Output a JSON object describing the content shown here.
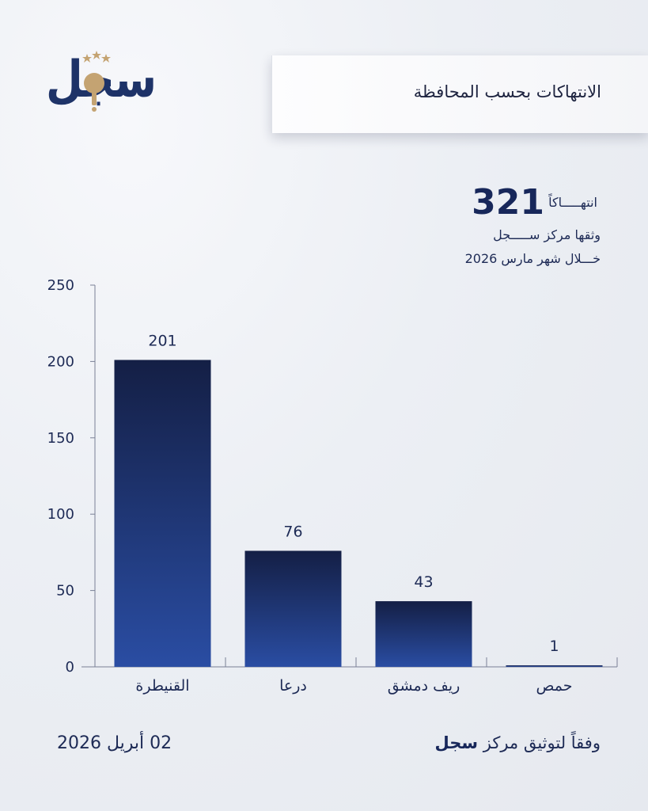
{
  "logo": {
    "text": "سجل"
  },
  "header": {
    "title": "الانتهاكات بحسب المحافظة"
  },
  "summary": {
    "total": "321",
    "total_word": "انتهـــــاكاً",
    "line2": "وثقها مركز ســـــجل",
    "line3": "خـــلال شهر مارس 2026"
  },
  "footer": {
    "date": "02 أبريل 2026",
    "credit_prefix": "وفقاً لتوثيق مركز",
    "credit_name": "سجل"
  },
  "colors": {
    "bar_top": "#141f45",
    "bar_bottom": "#2a4da3",
    "text": "#1d2a55",
    "accent_gold": "#c4a372"
  },
  "chart_data": {
    "type": "bar",
    "categories": [
      "القنيطرة",
      "درعا",
      "ريف دمشق",
      "حمص"
    ],
    "values": [
      201,
      76,
      43,
      1
    ],
    "ylim": [
      0,
      250
    ],
    "yticks": [
      0,
      50,
      100,
      150,
      200,
      250
    ],
    "grid": false
  }
}
